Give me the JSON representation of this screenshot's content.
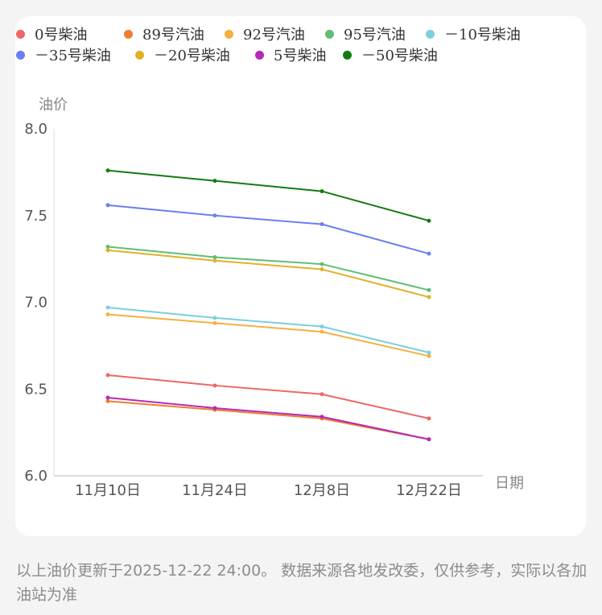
{
  "chart_data": {
    "type": "line",
    "categories": [
      "11月10日",
      "11月24日",
      "12月8日",
      "12月22日"
    ],
    "xlabel": "日期",
    "ylabel": "油价",
    "ylim": [
      6.0,
      8.0
    ],
    "yticks": [
      "6.0",
      "6.5",
      "7.0",
      "7.5",
      "8.0"
    ],
    "grid": false,
    "legend_position": "top",
    "series": [
      {
        "name": "0号柴油",
        "color": "#ee6666",
        "values": [
          6.58,
          6.52,
          6.47,
          6.33
        ]
      },
      {
        "name": "89号汽油",
        "color": "#ee7d31",
        "values": [
          6.43,
          6.38,
          6.33,
          6.21
        ]
      },
      {
        "name": "92号汽油",
        "color": "#f5b041",
        "values": [
          6.93,
          6.88,
          6.83,
          6.69
        ]
      },
      {
        "name": "95号汽油",
        "color": "#5fbe73",
        "values": [
          7.32,
          7.26,
          7.22,
          7.07
        ]
      },
      {
        "name": "－10号柴油",
        "color": "#7ccfdc",
        "values": [
          6.97,
          6.91,
          6.86,
          6.71
        ]
      },
      {
        "name": "－35号柴油",
        "color": "#6b7ff0",
        "values": [
          7.56,
          7.5,
          7.45,
          7.28
        ]
      },
      {
        "name": "－20号柴油",
        "color": "#e0b126",
        "values": [
          7.3,
          7.24,
          7.19,
          7.03
        ]
      },
      {
        "name": "5号柴油",
        "color": "#b52bb5",
        "values": [
          6.45,
          6.39,
          6.34,
          6.21
        ]
      },
      {
        "name": "－50号柴油",
        "color": "#137a13",
        "values": [
          7.76,
          7.7,
          7.64,
          7.47
        ]
      }
    ]
  },
  "footnote": "以上油价更新于2025-12-22 24:00。 数据来源各地发改委，仅供参考，实际以各加油站为准"
}
